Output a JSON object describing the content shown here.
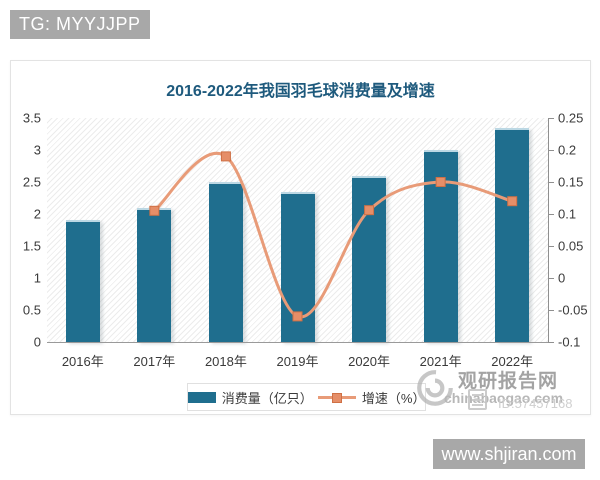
{
  "badges": {
    "top_left": "TG: MYYJJPP",
    "bottom_right": "www.shjiran.com"
  },
  "chart_data": {
    "type": "bar",
    "subtype": "bar-line-combo",
    "title": "2016-2022年我国羽毛球消费量及增速",
    "categories": [
      "2016年",
      "2017年",
      "2018年",
      "2019年",
      "2020年",
      "2021年",
      "2022年"
    ],
    "series": [
      {
        "name": "消费量（亿只）",
        "type": "bar",
        "axis": "left",
        "values": [
          1.9,
          2.1,
          2.5,
          2.35,
          2.6,
          3.0,
          3.35
        ]
      },
      {
        "name": "增速（%）",
        "type": "line",
        "axis": "right",
        "values": [
          null,
          0.105,
          0.19,
          -0.06,
          0.106,
          0.15,
          0.12
        ]
      }
    ],
    "left_axis": {
      "min": 0,
      "max": 3.5,
      "step": 0.5
    },
    "right_axis": {
      "min": -0.1,
      "max": 0.25,
      "step": 0.05
    },
    "legend_position": "bottom",
    "grid": false,
    "plot_background": "diagonal-hatch",
    "colors": {
      "bar": "#1f6e8e",
      "line": "#e89b78",
      "marker_fill": "#e58e68",
      "marker_border": "#cf7045",
      "title": "#1e5a7d"
    }
  },
  "watermark": {
    "site_name": "观研报告网",
    "domain": "chinabaogao.com",
    "id_text": "ID:57457168"
  }
}
